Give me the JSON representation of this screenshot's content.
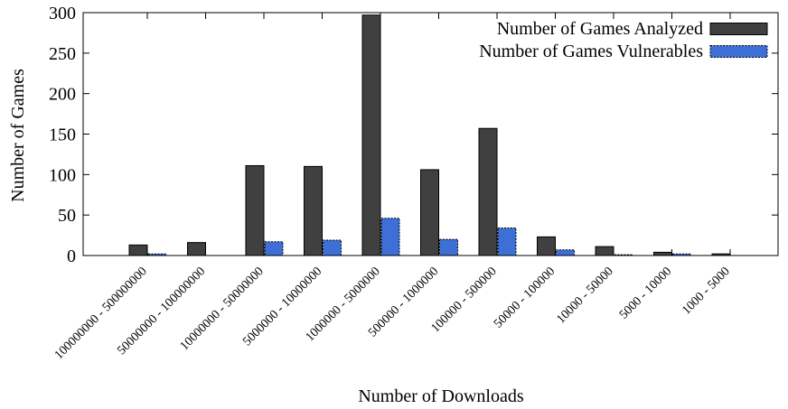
{
  "chart_data": {
    "type": "bar",
    "title": "",
    "xlabel": "Number of Downloads",
    "ylabel": "Number of Games",
    "ylim": [
      0,
      300
    ],
    "yticks": [
      0,
      50,
      100,
      150,
      200,
      250,
      300
    ],
    "grid": false,
    "legend_position": "top-right",
    "categories": [
      "100000000 - 500000000",
      "50000000 - 100000000",
      "10000000 - 50000000",
      "5000000 - 10000000",
      "1000000 - 5000000",
      "500000 - 1000000",
      "100000 - 500000",
      "50000 - 100000",
      "10000 - 50000",
      "5000 - 10000",
      "1000 - 5000"
    ],
    "series": [
      {
        "name": "Number of Games Analyzed",
        "color": "#404040",
        "values": [
          13,
          16,
          111,
          110,
          297,
          106,
          157,
          23,
          11,
          4,
          2
        ]
      },
      {
        "name": "Number of Games Vulnerables",
        "color": "#3d6fd6",
        "values": [
          2,
          0,
          17,
          19,
          46,
          20,
          34,
          7,
          1,
          2,
          0
        ]
      }
    ]
  }
}
